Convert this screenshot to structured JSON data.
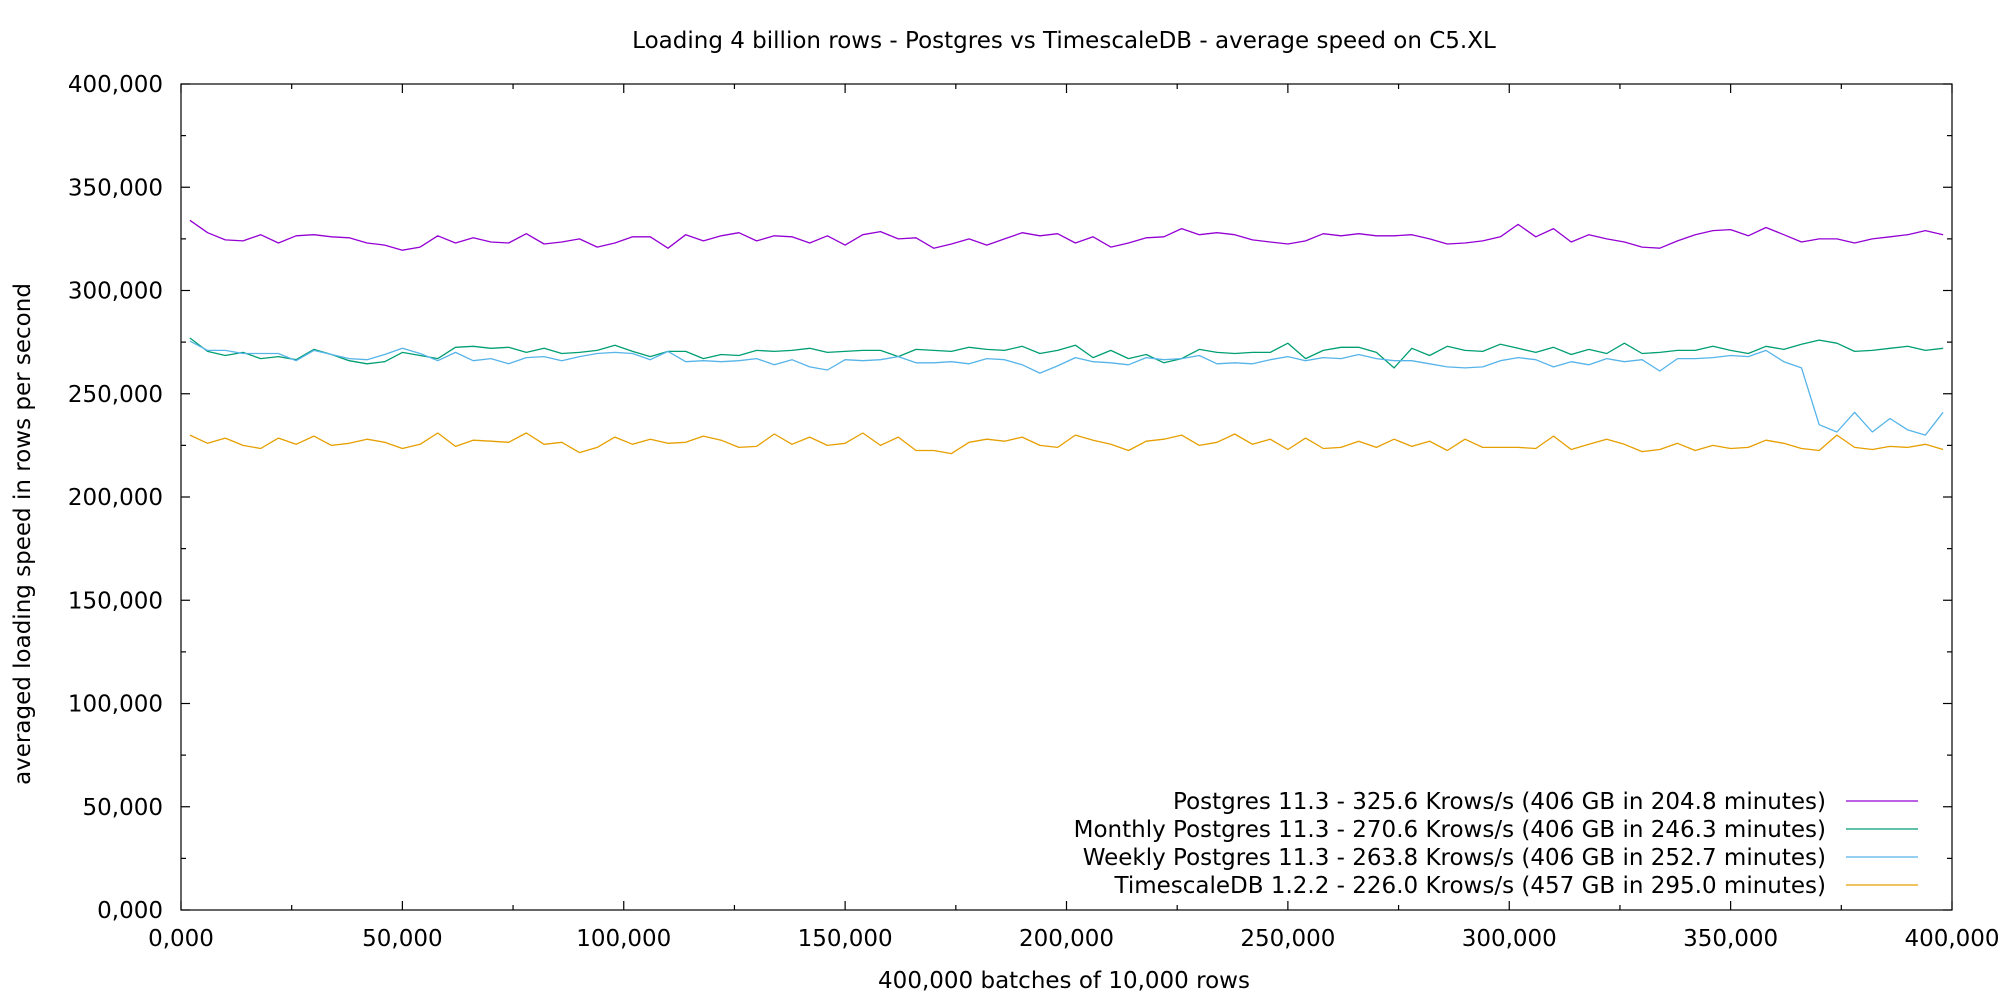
{
  "chart_data": {
    "type": "line",
    "title": "Loading 4 billion rows - Postgres vs TimescaleDB - average speed on C5.XL",
    "xlabel": "400,000 batches of 10,000 rows",
    "ylabel": "averaged loading speed in rows per second",
    "xlim": [
      0,
      400000
    ],
    "ylim": [
      0,
      400000
    ],
    "x_ticks": [
      {
        "value": 0,
        "label": "0,000"
      },
      {
        "value": 50000,
        "label": "50,000"
      },
      {
        "value": 100000,
        "label": "100,000"
      },
      {
        "value": 150000,
        "label": "150,000"
      },
      {
        "value": 200000,
        "label": "200,000"
      },
      {
        "value": 250000,
        "label": "250,000"
      },
      {
        "value": 300000,
        "label": "300,000"
      },
      {
        "value": 350000,
        "label": "350,000"
      },
      {
        "value": 400000,
        "label": "400,000"
      }
    ],
    "y_ticks": [
      {
        "value": 0,
        "label": "0,000"
      },
      {
        "value": 50000,
        "label": "50,000"
      },
      {
        "value": 100000,
        "label": "100,000"
      },
      {
        "value": 150000,
        "label": "150,000"
      },
      {
        "value": 200000,
        "label": "200,000"
      },
      {
        "value": 250000,
        "label": "250,000"
      },
      {
        "value": 300000,
        "label": "300,000"
      },
      {
        "value": 350000,
        "label": "350,000"
      },
      {
        "value": 400000,
        "label": "400,000"
      }
    ],
    "grid": false,
    "legend_position": "bottom-right",
    "series": [
      {
        "name": "Postgres 11.3 - 325.6 Krows/s (406 GB in 204.8 minutes)",
        "color": "#9400d3",
        "x": [
          2000,
          6000,
          10000,
          14000,
          18000,
          22000,
          26000,
          30000,
          34000,
          38000,
          42000,
          46000,
          50000,
          54000,
          58000,
          62000,
          66000,
          70000,
          74000,
          78000,
          82000,
          86000,
          90000,
          94000,
          98000,
          102000,
          106000,
          110000,
          114000,
          118000,
          122000,
          126000,
          130000,
          134000,
          138000,
          142000,
          146000,
          150000,
          154000,
          158000,
          162000,
          166000,
          170000,
          174000,
          178000,
          182000,
          186000,
          190000,
          194000,
          198000,
          202000,
          206000,
          210000,
          214000,
          218000,
          222000,
          226000,
          230000,
          234000,
          238000,
          242000,
          246000,
          250000,
          254000,
          258000,
          262000,
          266000,
          270000,
          274000,
          278000,
          282000,
          286000,
          290000,
          294000,
          298000,
          302000,
          306000,
          310000,
          314000,
          318000,
          322000,
          326000,
          330000,
          334000,
          338000,
          342000,
          346000,
          350000,
          354000,
          358000,
          362000,
          366000,
          370000,
          374000,
          378000,
          382000,
          386000,
          390000,
          394000,
          398000
        ],
        "y": [
          334000,
          328000,
          324500,
          324000,
          327000,
          323000,
          326500,
          327000,
          326000,
          325500,
          323000,
          322000,
          319500,
          321000,
          326500,
          323000,
          325500,
          323500,
          323000,
          327500,
          322500,
          323500,
          325000,
          321000,
          323000,
          326000,
          326000,
          320500,
          327000,
          324000,
          326500,
          328000,
          324000,
          326500,
          326000,
          323000,
          326500,
          322000,
          327000,
          328500,
          325000,
          325500,
          320500,
          322500,
          325000,
          322000,
          325000,
          328000,
          326500,
          327500,
          323000,
          326000,
          321000,
          323000,
          325500,
          326000,
          330000,
          327000,
          328000,
          327000,
          324500,
          323500,
          322500,
          324000,
          327500,
          326500,
          327500,
          326500,
          326500,
          327000,
          325000,
          322500,
          323000,
          324000,
          326000,
          332000,
          326000,
          330000,
          323500,
          327000,
          325000,
          323500,
          321000,
          320500,
          324000,
          327000,
          329000,
          329500,
          326500,
          330500,
          327000,
          323500,
          325000,
          325000,
          323000,
          325000,
          326000,
          327000,
          329000,
          327000
        ]
      },
      {
        "name": "Monthly Postgres 11.3 - 270.6 Krows/s (406 GB in 246.3 minutes)",
        "color": "#009e73",
        "x": [
          2000,
          6000,
          10000,
          14000,
          18000,
          22000,
          26000,
          30000,
          34000,
          38000,
          42000,
          46000,
          50000,
          54000,
          58000,
          62000,
          66000,
          70000,
          74000,
          78000,
          82000,
          86000,
          90000,
          94000,
          98000,
          102000,
          106000,
          110000,
          114000,
          118000,
          122000,
          126000,
          130000,
          134000,
          138000,
          142000,
          146000,
          150000,
          154000,
          158000,
          162000,
          166000,
          170000,
          174000,
          178000,
          182000,
          186000,
          190000,
          194000,
          198000,
          202000,
          206000,
          210000,
          214000,
          218000,
          222000,
          226000,
          230000,
          234000,
          238000,
          242000,
          246000,
          250000,
          254000,
          258000,
          262000,
          266000,
          270000,
          274000,
          278000,
          282000,
          286000,
          290000,
          294000,
          298000,
          302000,
          306000,
          310000,
          314000,
          318000,
          322000,
          326000,
          330000,
          334000,
          338000,
          342000,
          346000,
          350000,
          354000,
          358000,
          362000,
          366000,
          370000,
          374000,
          378000,
          382000,
          386000,
          390000,
          394000,
          398000
        ],
        "y": [
          277000,
          270500,
          268500,
          270000,
          267000,
          268000,
          266500,
          271500,
          269000,
          266000,
          264500,
          265500,
          270000,
          268500,
          267000,
          272500,
          273000,
          272000,
          272500,
          270000,
          272000,
          269500,
          270000,
          271000,
          273500,
          270500,
          268000,
          270500,
          270500,
          267000,
          269000,
          268500,
          271000,
          270500,
          271000,
          272000,
          270000,
          270500,
          271000,
          271000,
          268000,
          271500,
          271000,
          270500,
          272500,
          271500,
          271000,
          273000,
          269500,
          271000,
          273500,
          267500,
          271000,
          267000,
          269000,
          265000,
          267000,
          271500,
          270000,
          269500,
          270000,
          270000,
          274500,
          267000,
          271000,
          272500,
          272500,
          270000,
          262500,
          272000,
          268500,
          273000,
          271000,
          270500,
          274000,
          272000,
          270000,
          272500,
          269000,
          271500,
          269500,
          274500,
          269500,
          270000,
          271000,
          271000,
          273000,
          271000,
          269500,
          273000,
          271500,
          274000,
          276000,
          274500,
          270500,
          271000,
          272000,
          273000,
          271000,
          272000
        ]
      },
      {
        "name": "Weekly Postgres 11.3 - 263.8 Krows/s (406 GB in 252.7 minutes)",
        "color": "#56b4e9",
        "x": [
          2000,
          6000,
          10000,
          14000,
          18000,
          22000,
          26000,
          30000,
          34000,
          38000,
          42000,
          46000,
          50000,
          54000,
          58000,
          62000,
          66000,
          70000,
          74000,
          78000,
          82000,
          86000,
          90000,
          94000,
          98000,
          102000,
          106000,
          110000,
          114000,
          118000,
          122000,
          126000,
          130000,
          134000,
          138000,
          142000,
          146000,
          150000,
          154000,
          158000,
          162000,
          166000,
          170000,
          174000,
          178000,
          182000,
          186000,
          190000,
          194000,
          198000,
          202000,
          206000,
          210000,
          214000,
          218000,
          222000,
          226000,
          230000,
          234000,
          238000,
          242000,
          246000,
          250000,
          254000,
          258000,
          262000,
          266000,
          270000,
          274000,
          278000,
          282000,
          286000,
          290000,
          294000,
          298000,
          302000,
          306000,
          310000,
          314000,
          318000,
          322000,
          326000,
          330000,
          334000,
          338000,
          342000,
          346000,
          350000,
          354000,
          358000,
          362000,
          366000,
          370000,
          374000,
          378000,
          382000,
          386000,
          390000,
          394000,
          398000
        ],
        "y": [
          275500,
          271000,
          271000,
          269500,
          269500,
          269500,
          266000,
          271000,
          269000,
          267000,
          266500,
          269000,
          272000,
          269500,
          266000,
          270000,
          266000,
          267000,
          264500,
          267500,
          268000,
          266000,
          268000,
          269500,
          270000,
          269500,
          266500,
          270500,
          265500,
          266000,
          265500,
          266000,
          267000,
          264000,
          266500,
          263000,
          261500,
          266500,
          266000,
          266500,
          268000,
          265000,
          265000,
          265500,
          264500,
          267000,
          266500,
          264000,
          260000,
          263500,
          267500,
          265500,
          265000,
          264000,
          267500,
          266500,
          267000,
          268500,
          264500,
          265000,
          264500,
          266500,
          268000,
          266000,
          267500,
          267000,
          269000,
          267000,
          266000,
          266000,
          264500,
          263000,
          262500,
          263000,
          266000,
          267500,
          266500,
          263000,
          265500,
          264000,
          267000,
          265500,
          266500,
          261000,
          267000,
          267000,
          267500,
          268500,
          268000,
          271000,
          265500,
          262500,
          235000,
          231500,
          241000,
          231500,
          238000,
          232500,
          230000,
          241000
        ]
      },
      {
        "name": "TimescaleDB 1.2.2 - 226.0 Krows/s (457 GB in 295.0 minutes)",
        "color": "#e69f00",
        "x": [
          2000,
          6000,
          10000,
          14000,
          18000,
          22000,
          26000,
          30000,
          34000,
          38000,
          42000,
          46000,
          50000,
          54000,
          58000,
          62000,
          66000,
          70000,
          74000,
          78000,
          82000,
          86000,
          90000,
          94000,
          98000,
          102000,
          106000,
          110000,
          114000,
          118000,
          122000,
          126000,
          130000,
          134000,
          138000,
          142000,
          146000,
          150000,
          154000,
          158000,
          162000,
          166000,
          170000,
          174000,
          178000,
          182000,
          186000,
          190000,
          194000,
          198000,
          202000,
          206000,
          210000,
          214000,
          218000,
          222000,
          226000,
          230000,
          234000,
          238000,
          242000,
          246000,
          250000,
          254000,
          258000,
          262000,
          266000,
          270000,
          274000,
          278000,
          282000,
          286000,
          290000,
          294000,
          298000,
          302000,
          306000,
          310000,
          314000,
          318000,
          322000,
          326000,
          330000,
          334000,
          338000,
          342000,
          346000,
          350000,
          354000,
          358000,
          362000,
          366000,
          370000,
          374000,
          378000,
          382000,
          386000,
          390000,
          394000,
          398000
        ],
        "y": [
          230000,
          226000,
          228500,
          225000,
          223500,
          228500,
          225500,
          229500,
          225000,
          226000,
          228000,
          226500,
          223500,
          225500,
          231000,
          224500,
          227500,
          227000,
          226500,
          231000,
          225500,
          226500,
          221500,
          224000,
          229000,
          225500,
          228000,
          226000,
          226500,
          229500,
          227500,
          224000,
          224500,
          230500,
          225500,
          229000,
          225000,
          226000,
          231000,
          225000,
          229000,
          222500,
          222500,
          221000,
          226500,
          228000,
          227000,
          229000,
          225000,
          224000,
          230000,
          227500,
          225500,
          222500,
          227000,
          228000,
          230000,
          225000,
          226500,
          230500,
          225500,
          228000,
          223000,
          228500,
          223500,
          224000,
          227000,
          224000,
          228000,
          224500,
          227000,
          222500,
          228000,
          224000,
          224000,
          224000,
          223500,
          229500,
          223000,
          225500,
          228000,
          225500,
          222000,
          223000,
          226000,
          222500,
          225000,
          223500,
          224000,
          227500,
          226000,
          223500,
          222500,
          230000,
          224000,
          223000,
          224500,
          224000,
          225500,
          223000
        ]
      }
    ]
  }
}
